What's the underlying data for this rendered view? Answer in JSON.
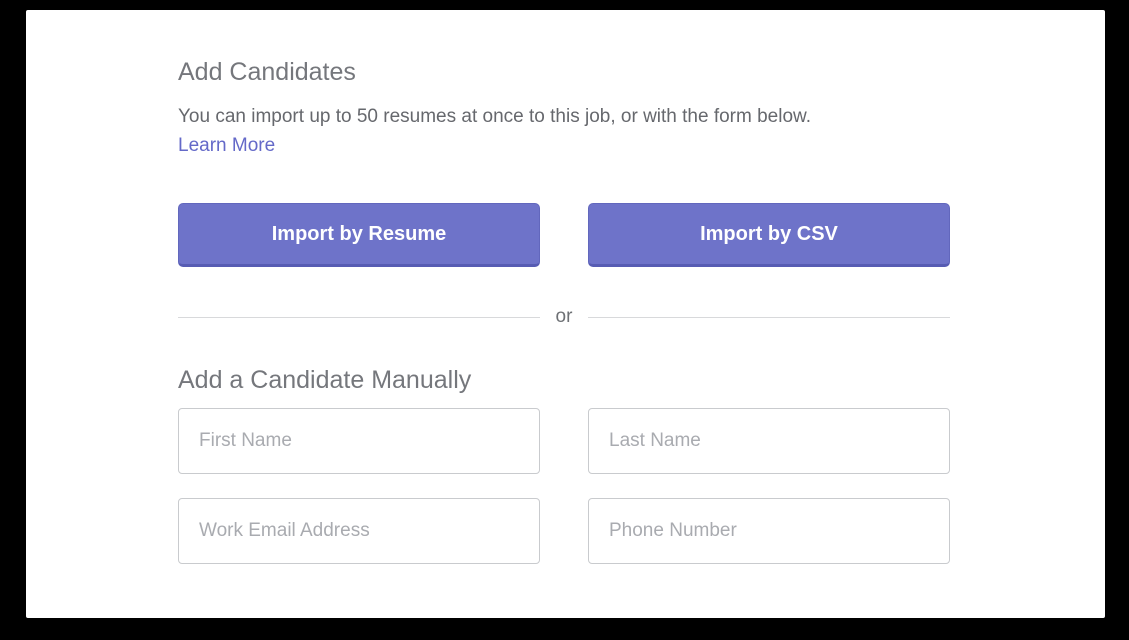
{
  "header": {
    "title": "Add Candidates",
    "description": "You can import up to 50 resumes at once to this job, or with the form below.",
    "learn_more_label": "Learn More"
  },
  "import_actions": {
    "resume_button_label": "Import by Resume",
    "csv_button_label": "Import by CSV"
  },
  "divider": {
    "label": "or"
  },
  "manual_form": {
    "title": "Add a Candidate Manually",
    "fields": [
      {
        "id": "first-name",
        "placeholder": "First Name",
        "value": ""
      },
      {
        "id": "last-name",
        "placeholder": "Last Name",
        "value": ""
      },
      {
        "id": "work-email",
        "placeholder": "Work Email Address",
        "value": ""
      },
      {
        "id": "phone-number",
        "placeholder": "Phone Number",
        "value": ""
      }
    ]
  },
  "colors": {
    "accent_purple": "#6e73c9",
    "accent_purple_border": "#575cb3",
    "link_purple": "#6469c8",
    "heading_gray": "#75777c",
    "body_gray": "#66686d",
    "placeholder_gray": "#a9abb0",
    "card_background": "#ffffff",
    "canvas_background": "#000000"
  }
}
